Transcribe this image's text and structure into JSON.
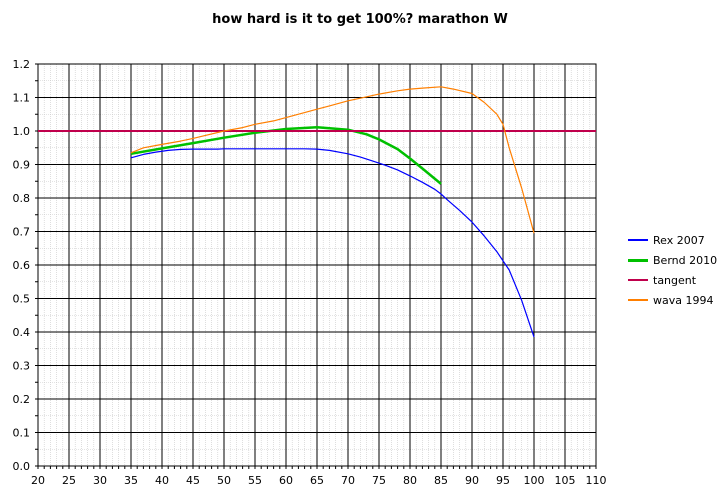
{
  "chart_data": {
    "type": "line",
    "title": "how hard is it to get 100%? marathon W",
    "xlabel": "",
    "ylabel": "",
    "xlim": [
      20,
      110
    ],
    "ylim": [
      0,
      1.2
    ],
    "xticks": [
      20,
      25,
      30,
      35,
      40,
      45,
      50,
      55,
      60,
      65,
      70,
      75,
      80,
      85,
      90,
      95,
      100,
      105,
      110
    ],
    "yticks": [
      0,
      0.1,
      0.2,
      0.3,
      0.4,
      0.5,
      0.6,
      0.7,
      0.8,
      0.9,
      1.0,
      1.1,
      1.2
    ],
    "ytick_labels": [
      "0.0",
      "0.1",
      "0.2",
      "0.3",
      "0.4",
      "0.5",
      "0.6",
      "0.7",
      "0.8",
      "0.9",
      "1.0",
      "1.1",
      "1.2"
    ],
    "grid": true,
    "legend_position": "right",
    "series": [
      {
        "name": "Rex 2007",
        "color": "#0000ff",
        "x": [
          35,
          37,
          39,
          41,
          43,
          45,
          47,
          49,
          50,
          55,
          60,
          63,
          65,
          67,
          70,
          72,
          74,
          76,
          78,
          80,
          82,
          84,
          85,
          86,
          88,
          90,
          92,
          94,
          96,
          98,
          100
        ],
        "y": [
          0.92,
          0.93,
          0.937,
          0.942,
          0.945,
          0.946,
          0.946,
          0.946,
          0.947,
          0.947,
          0.947,
          0.947,
          0.946,
          0.942,
          0.932,
          0.922,
          0.91,
          0.898,
          0.884,
          0.866,
          0.847,
          0.826,
          0.812,
          0.795,
          0.763,
          0.728,
          0.686,
          0.64,
          0.585,
          0.495,
          0.385
        ]
      },
      {
        "name": "Bernd 2010",
        "color": "#00c000",
        "x": [
          35,
          40,
          45,
          50,
          55,
          60,
          65,
          70,
          73,
          75,
          78,
          80,
          82,
          85
        ],
        "y": [
          0.932,
          0.948,
          0.964,
          0.98,
          0.995,
          1.006,
          1.011,
          1.004,
          0.99,
          0.975,
          0.946,
          0.918,
          0.888,
          0.842
        ]
      },
      {
        "name": "tangent",
        "color": "#c0004c",
        "x": [
          20,
          110
        ],
        "y": [
          1.0,
          1.0
        ]
      },
      {
        "name": "wava 1994",
        "color": "#ff7f00",
        "x": [
          35,
          37,
          40,
          43,
          45,
          47,
          50,
          53,
          55,
          58,
          60,
          63,
          65,
          67,
          70,
          72,
          75,
          78,
          80,
          82,
          85,
          87,
          90,
          92,
          94,
          95,
          96,
          98,
          100
        ],
        "y": [
          0.935,
          0.95,
          0.96,
          0.97,
          0.978,
          0.987,
          1.0,
          1.01,
          1.02,
          1.03,
          1.04,
          1.055,
          1.065,
          1.075,
          1.09,
          1.098,
          1.11,
          1.12,
          1.125,
          1.128,
          1.132,
          1.125,
          1.112,
          1.085,
          1.05,
          1.02,
          0.95,
          0.83,
          0.695
        ]
      }
    ]
  }
}
